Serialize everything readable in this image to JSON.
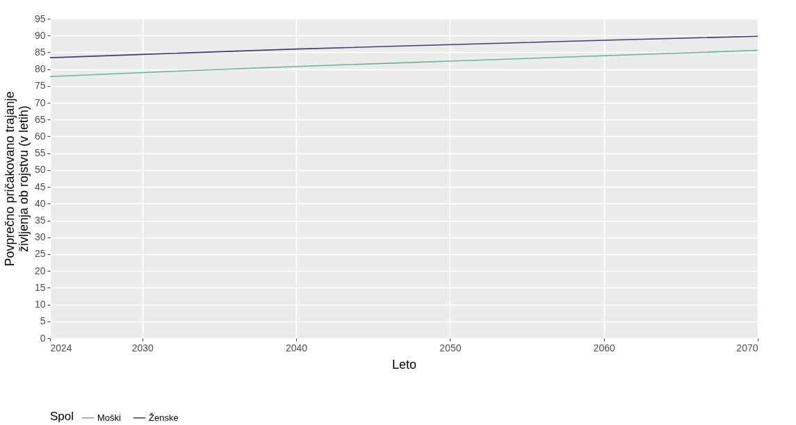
{
  "chart_data": {
    "type": "line",
    "xlabel": "Leto",
    "ylabel": "Povprečno pričakovano trajanje\nživljenja ob rojstvu (v letih)",
    "legend_title": "Spol",
    "x": [
      2024,
      2030,
      2040,
      2050,
      2060,
      2070
    ],
    "series": [
      {
        "name": "Moški",
        "color": "#66b498",
        "values": [
          77.8,
          79.0,
          80.8,
          82.4,
          84.0,
          85.6
        ]
      },
      {
        "name": "Ženske",
        "color": "#3f3c78",
        "values": [
          83.4,
          84.4,
          86.0,
          87.3,
          88.6,
          89.8
        ]
      }
    ],
    "xlim": [
      2024,
      2070
    ],
    "xticks": [
      2024,
      2030,
      2040,
      2050,
      2060,
      2070
    ],
    "ylim": [
      0,
      95
    ],
    "yticks": [
      0,
      5,
      10,
      15,
      20,
      25,
      30,
      35,
      40,
      45,
      50,
      55,
      60,
      65,
      70,
      75,
      80,
      85,
      90,
      95
    ],
    "grid": true,
    "legend": "bottom",
    "marker": "none",
    "line_style": "solid"
  }
}
